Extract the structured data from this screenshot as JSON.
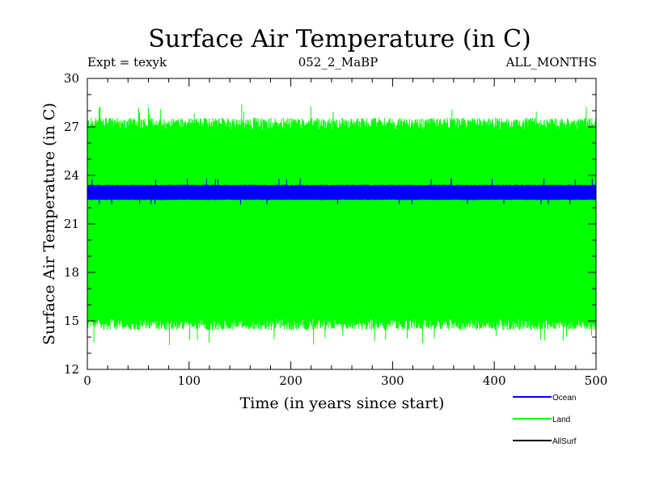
{
  "chart_data": {
    "type": "line",
    "title": "Surface Air Temperature (in C)",
    "header_left": "Expt = texyk",
    "header_center": "052_2_MaBP",
    "header_right": "ALL_MONTHS",
    "xlabel": "Time (in years since start)",
    "ylabel": "Surface Air Temperature (in C)",
    "xlim": [
      0,
      500
    ],
    "ylim": [
      12,
      30
    ],
    "x_ticks": [
      "0",
      "100",
      "200",
      "300",
      "400",
      "500"
    ],
    "y_ticks": [
      "12",
      "15",
      "18",
      "21",
      "24",
      "27",
      "30"
    ],
    "grid": false,
    "legend_position": "bottom-right",
    "series": [
      {
        "name": "Land",
        "color": "#00ff00",
        "oscillation": "seasonal",
        "summer_max_approx": 27.2,
        "winter_min_approx": 14.8,
        "overall_max": 28.4,
        "overall_min": 13.5
      },
      {
        "name": "Ocean",
        "color": "#0000ff",
        "oscillation": "seasonal",
        "summer_max_approx": 23.4,
        "winter_min_approx": 22.5,
        "overall_max": 23.8,
        "overall_min": 22.2
      },
      {
        "name": "AllSurf",
        "color": "#000000",
        "oscillation": "none",
        "mean_approx": 22.9
      }
    ],
    "legend": [
      {
        "name": "Ocean",
        "color": "#0000ff"
      },
      {
        "name": "Land",
        "color": "#00ff00"
      },
      {
        "name": "AllSurf",
        "color": "#000000"
      }
    ]
  }
}
